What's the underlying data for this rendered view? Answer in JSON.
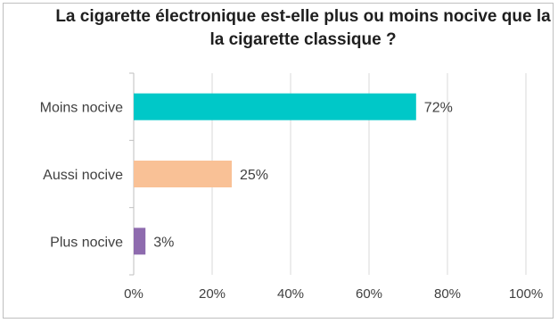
{
  "chart_data": {
    "type": "bar",
    "orientation": "horizontal",
    "title": "La cigarette électronique est-elle plus ou moins nocive que la la cigarette classique ?",
    "categories": [
      "Moins nocive",
      "Aussi nocive",
      "Plus nocive"
    ],
    "values": [
      72,
      25,
      3
    ],
    "value_labels": [
      "72%",
      "25%",
      "3%"
    ],
    "bar_colors": [
      "#00c8c8",
      "#f9c196",
      "#8e6bae"
    ],
    "xlim": [
      0,
      100
    ],
    "x_ticks": [
      0,
      20,
      40,
      60,
      80,
      100
    ],
    "x_tick_labels": [
      "0%",
      "20%",
      "40%",
      "60%",
      "80%",
      "100%"
    ],
    "grid": true,
    "legend": "none"
  }
}
